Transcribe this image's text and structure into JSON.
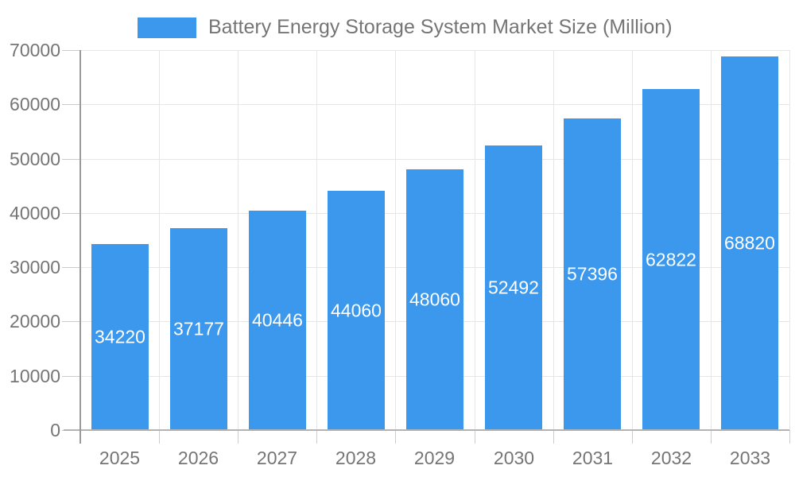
{
  "chart_data": {
    "type": "bar",
    "title": "Battery Energy Storage System Market Size (Million)",
    "categories": [
      "2025",
      "2026",
      "2027",
      "2028",
      "2029",
      "2030",
      "2031",
      "2032",
      "2033"
    ],
    "values": [
      34220,
      37177,
      40446,
      44060,
      48060,
      52492,
      57396,
      62822,
      68820
    ],
    "xlabel": "",
    "ylabel": "",
    "ylim": [
      0,
      70000
    ],
    "yticks": [
      0,
      10000,
      20000,
      30000,
      40000,
      50000,
      60000,
      70000
    ],
    "grid": true,
    "legend_position": "top",
    "bar_color": "#3b98ec",
    "value_label_color": "#ffffff",
    "axis_text_color": "#757575",
    "gridline_color": "#e6e6e6"
  }
}
